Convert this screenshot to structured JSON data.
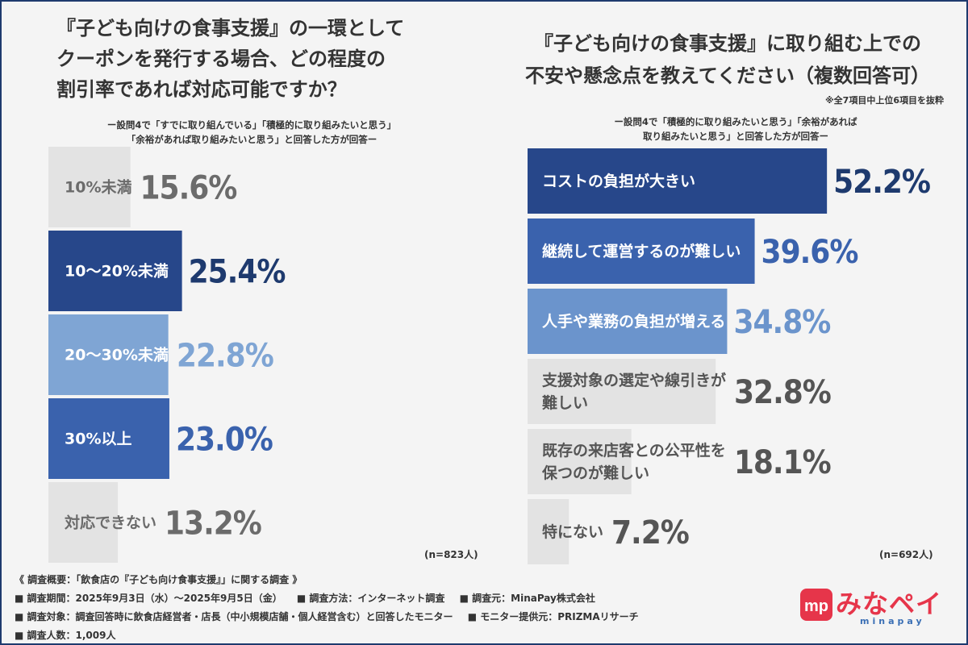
{
  "left": {
    "title_lines": [
      "『子ども向けの食事支援』の一環として",
      "クーポンを発行する場合、どの程度の",
      "割引率であれば対応可能ですか？"
    ],
    "note_lines": [
      "ー設問4で「すでに取り組んでいる」「積極的に取り組みたいと思う」",
      "「余裕があれば取り組みたいと思う」と回答した方が回答ー"
    ],
    "n": "(n=823人)"
  },
  "right": {
    "title_lines": [
      "『子ども向けの食事支援』に取り組む上での",
      "不安や懸念点を教えてください（複数回答可）"
    ],
    "excerpt": "※全7項目中上位6項目を抜粋",
    "note_lines": [
      "ー設問4で「積極的に取り組みたいと思う」「余裕があれば",
      "取り組みたいと思う」と回答した方が回答ー"
    ],
    "n": "(n=692人)"
  },
  "chart_data": [
    {
      "type": "bar",
      "orientation": "horizontal",
      "categories": [
        "10%未満",
        "10〜20%未満",
        "20〜30%未満",
        "30%以上",
        "対応できない"
      ],
      "values": [
        15.6,
        25.4,
        22.8,
        23.0,
        13.2
      ],
      "value_labels": [
        "15.6%",
        "25.4%",
        "22.8%",
        "23.0%",
        "13.2%"
      ],
      "colors": [
        "#e3e3e3",
        "#27478a",
        "#7fa5d4",
        "#3a62ad",
        "#e3e3e3"
      ],
      "label_colors": [
        "#6b6b6b",
        "#1e3a6e",
        "#7fa5d4",
        "#3a62ad",
        "#6b6b6b"
      ],
      "cat_colors": [
        "#6b6b6b",
        "#ffffff",
        "#ffffff",
        "#ffffff",
        "#6b6b6b"
      ]
    },
    {
      "type": "bar",
      "orientation": "horizontal",
      "categories": [
        [
          "コストの負担が大きい"
        ],
        [
          "継続して運営するのが難しい"
        ],
        [
          "人手や業務の負担が増える"
        ],
        [
          "支援対象の選定や線引きが",
          "難しい"
        ],
        [
          "既存の来店客との公平性を",
          "保つのが難しい"
        ],
        [
          "特にない"
        ]
      ],
      "values": [
        52.2,
        39.6,
        34.8,
        32.8,
        18.1,
        7.2
      ],
      "value_labels": [
        "52.2%",
        "39.6%",
        "34.8%",
        "32.8%",
        "18.1%",
        "7.2%"
      ],
      "colors": [
        "#27478a",
        "#3a62ad",
        "#6b94cc",
        "#e3e3e3",
        "#e3e3e3",
        "#e3e3e3"
      ],
      "label_colors": [
        "#1e3a6e",
        "#3a62ad",
        "#6b94cc",
        "#555555",
        "#555555",
        "#555555"
      ],
      "cat_colors": [
        "#ffffff",
        "#ffffff",
        "#ffffff",
        "#555555",
        "#555555",
        "#555555"
      ]
    }
  ],
  "footer": {
    "heading": "《 調査概要：「飲食店の『子ども向け食事支援』」に関する調査 》",
    "row1": [
      "■ 調査期間：2025年9月3日（水）〜2025年9月5日（金）",
      "■ 調査方法：インターネット調査",
      "■ 調査元：MinaPay株式会社"
    ],
    "row2": [
      "■ 調査対象：調査回答時に飲食店経営者・店長（中小規模店舗・個人経営含む）と回答したモニター",
      "■ モニター提供元：PRIZMAリサーチ"
    ],
    "row3": "■ 調査人数：1,009人"
  },
  "logo": {
    "icon_letter": "mp",
    "text": "みなペイ",
    "sub": "minapay",
    "icon_color": "#e6354a"
  }
}
